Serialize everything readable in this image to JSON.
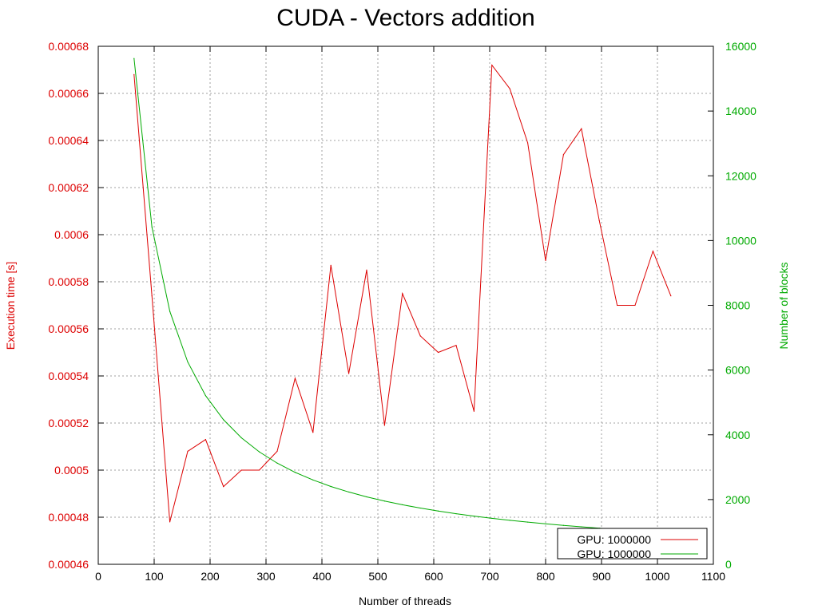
{
  "chart_data": {
    "type": "line",
    "title": "CUDA - Vectors addition",
    "xlabel": "Number of threads",
    "ylabel": "Execution time [s]",
    "y2label": "Number of blocks",
    "xlim": [
      0,
      1100
    ],
    "ylim": [
      0.00046,
      0.00068
    ],
    "y2lim": [
      0,
      16000
    ],
    "x_ticks": [
      "0",
      "100",
      "200",
      "300",
      "400",
      "500",
      "600",
      "700",
      "800",
      "900",
      "1000",
      "1100"
    ],
    "y_ticks": [
      "0.00046",
      "0.00048",
      "0.0005",
      "0.00052",
      "0.00054",
      "0.00056",
      "0.00058",
      "0.0006",
      "0.00062",
      "0.00064",
      "0.00066",
      "0.00068"
    ],
    "y2_ticks": [
      "0",
      "2000",
      "4000",
      "6000",
      "8000",
      "10000",
      "12000",
      "14000",
      "16000"
    ],
    "grid": true,
    "legend_position": "bottom-right",
    "colors": {
      "time": "#dd0000",
      "blocks": "#00aa00",
      "grid": "#a0a0a0",
      "axis": "#000000"
    },
    "series": [
      {
        "name": "GPU: 1000000",
        "axis": "y1",
        "x": [
          64,
          96,
          128,
          160,
          192,
          224,
          256,
          288,
          320,
          352,
          384,
          416,
          448,
          480,
          512,
          544,
          576,
          608,
          640,
          672,
          704,
          736,
          768,
          800,
          832,
          864,
          896,
          928,
          960,
          992,
          1024
        ],
        "values": [
          0.000668,
          0.000574,
          0.000478,
          0.000508,
          0.000513,
          0.000493,
          0.0005,
          0.0005,
          0.000508,
          0.000539,
          0.000516,
          0.000587,
          0.000541,
          0.000585,
          0.000519,
          0.000575,
          0.000557,
          0.00055,
          0.000553,
          0.000525,
          0.000672,
          0.000662,
          0.000639,
          0.000589,
          0.000634,
          0.000645,
          0.000606,
          0.00057,
          0.00057,
          0.000593,
          0.000574
        ]
      },
      {
        "name": "GPU: 1000000",
        "axis": "y2",
        "x": [
          64,
          96,
          128,
          160,
          192,
          224,
          256,
          288,
          320,
          352,
          384,
          416,
          448,
          480,
          512,
          544,
          576,
          608,
          640,
          672,
          704,
          736,
          768,
          800,
          832,
          864,
          896,
          928,
          960,
          992,
          1024
        ],
        "values": [
          15625,
          10417,
          7813,
          6250,
          5209,
          4465,
          3907,
          3473,
          3125,
          2841,
          2605,
          2404,
          2233,
          2084,
          1954,
          1839,
          1737,
          1645,
          1563,
          1489,
          1421,
          1359,
          1303,
          1250,
          1202,
          1158,
          1117,
          1078,
          1042,
          1009,
          977
        ]
      }
    ]
  }
}
